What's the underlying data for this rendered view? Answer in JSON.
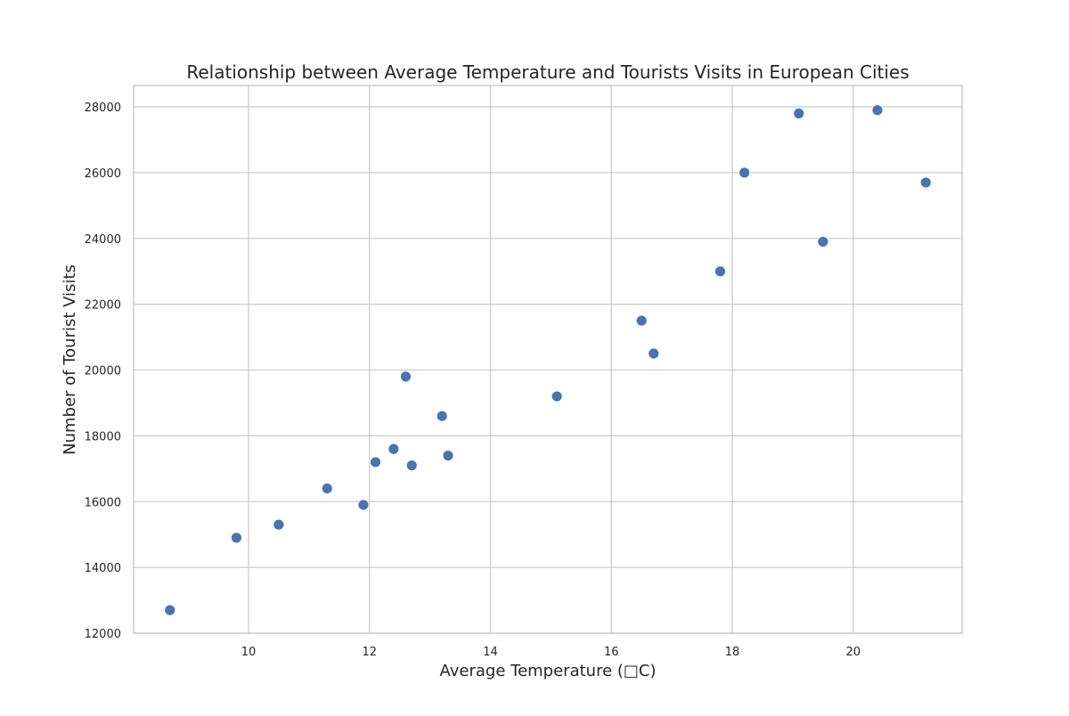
{
  "chart_data": {
    "type": "scatter",
    "title": "Relationship between Average Temperature and Tourists Visits in European Cities",
    "xlabel": "Average Temperature (□C)",
    "ylabel": "Number of Tourist Visits",
    "xlim": [
      8.1,
      21.8
    ],
    "ylim": [
      12000,
      28650
    ],
    "x_ticks": [
      10,
      12,
      14,
      16,
      18,
      20
    ],
    "y_ticks": [
      12000,
      14000,
      16000,
      18000,
      20000,
      22000,
      24000,
      26000,
      28000
    ],
    "grid": true,
    "marker_color": "#4c72b0",
    "grid_color": "#cccccc",
    "points": [
      {
        "x": 8.7,
        "y": 12700
      },
      {
        "x": 9.8,
        "y": 14900
      },
      {
        "x": 10.5,
        "y": 15300
      },
      {
        "x": 11.3,
        "y": 16400
      },
      {
        "x": 11.9,
        "y": 15900
      },
      {
        "x": 12.1,
        "y": 17200
      },
      {
        "x": 12.4,
        "y": 17600
      },
      {
        "x": 12.6,
        "y": 19800
      },
      {
        "x": 12.7,
        "y": 17100
      },
      {
        "x": 13.2,
        "y": 18600
      },
      {
        "x": 13.3,
        "y": 17400
      },
      {
        "x": 15.1,
        "y": 19200
      },
      {
        "x": 16.5,
        "y": 21500
      },
      {
        "x": 16.7,
        "y": 20500
      },
      {
        "x": 17.8,
        "y": 23000
      },
      {
        "x": 18.2,
        "y": 26000
      },
      {
        "x": 19.1,
        "y": 27800
      },
      {
        "x": 19.5,
        "y": 23900
      },
      {
        "x": 20.4,
        "y": 27900
      },
      {
        "x": 21.2,
        "y": 25700
      }
    ]
  }
}
